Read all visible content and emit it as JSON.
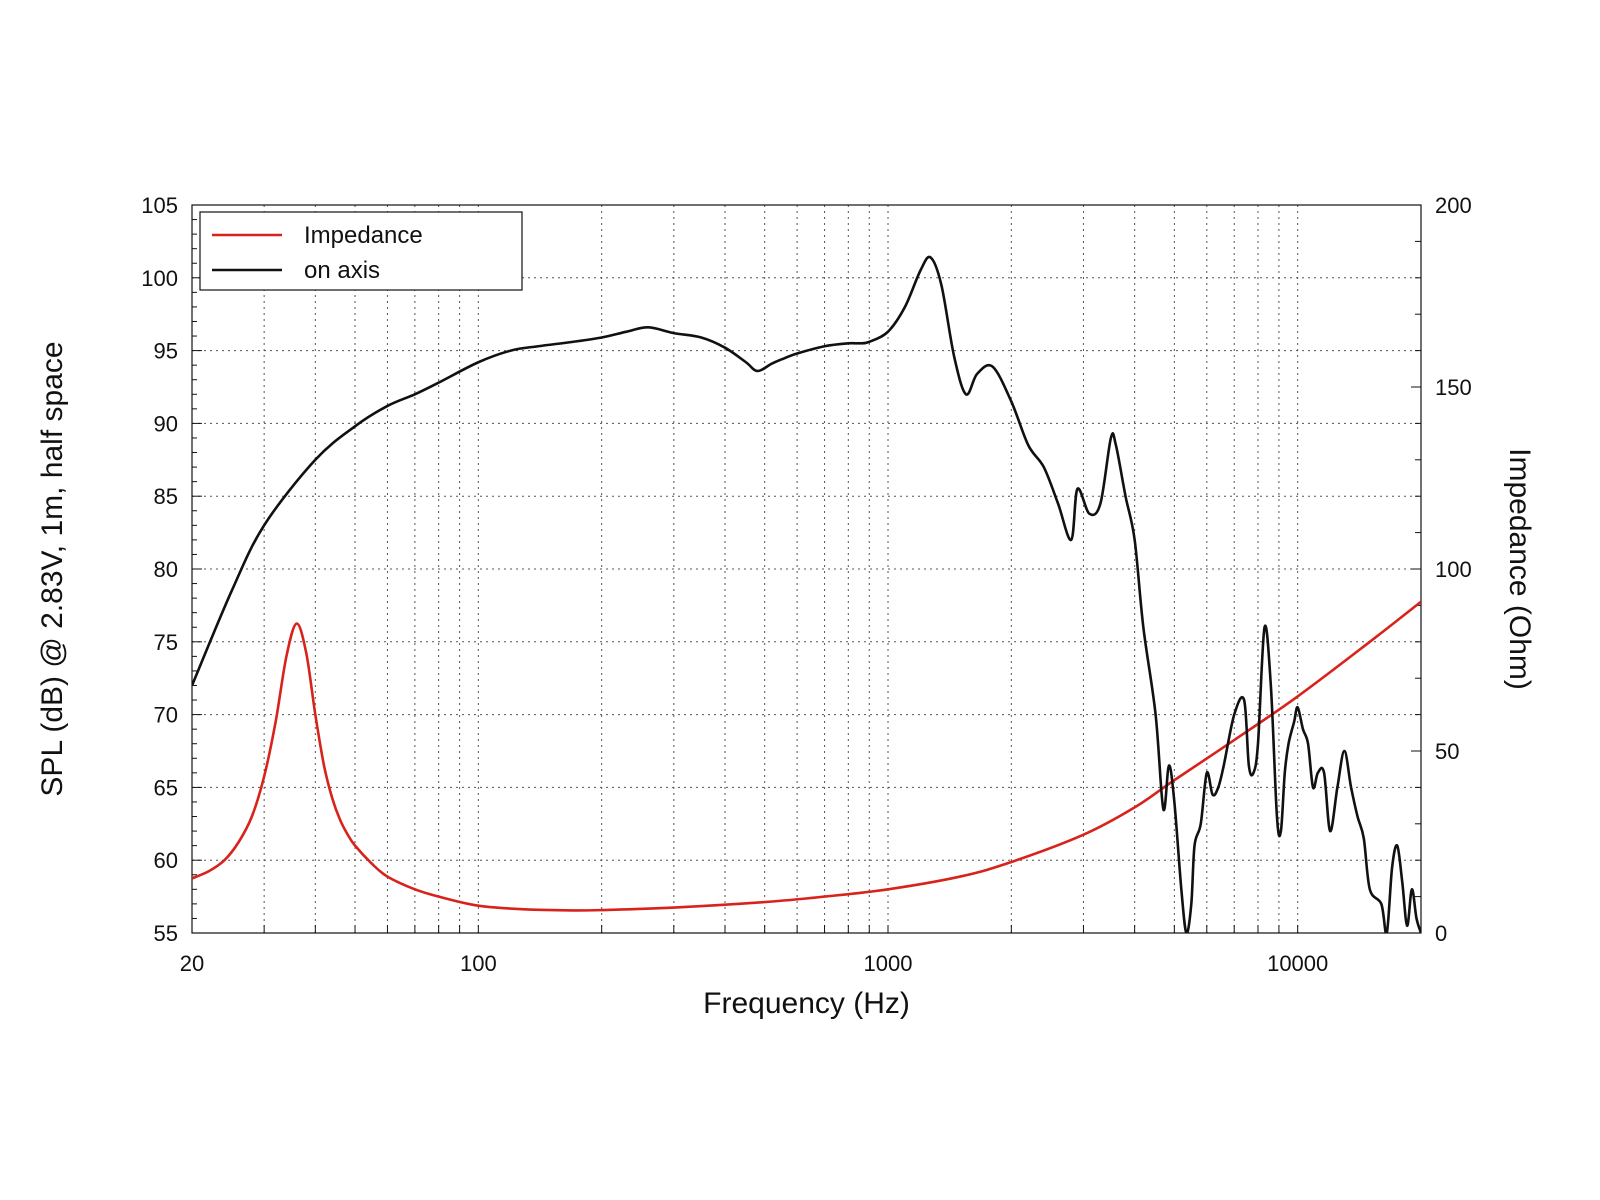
{
  "chart_data": {
    "type": "line",
    "xlabel": "Frequency (Hz)",
    "ylabel": "SPL (dB) @ 2.83V, 1m, half space",
    "y2label": "Impedance (Ohm)",
    "xscale": "log",
    "xlim": [
      20,
      20000
    ],
    "ylim": [
      55,
      105
    ],
    "y2lim": [
      0,
      200
    ],
    "xticks": [
      20,
      100,
      1000,
      10000
    ],
    "xtick_labels": [
      "20",
      "100",
      "1000",
      "10000"
    ],
    "yticks": [
      55,
      60,
      65,
      70,
      75,
      80,
      85,
      90,
      95,
      100,
      105
    ],
    "ytick_labels": [
      "55",
      "60",
      "65",
      "70",
      "75",
      "80",
      "85",
      "90",
      "95",
      "100",
      "105"
    ],
    "y2ticks": [
      0,
      50,
      100,
      150,
      200
    ],
    "y2tick_labels": [
      "0",
      "50",
      "100",
      "150",
      "200"
    ],
    "grid": true,
    "legend_position": "top-left",
    "series": [
      {
        "name": "Impedance",
        "axis": "right",
        "color": "#d8231c",
        "x": [
          20,
          22,
          24,
          26,
          28,
          30,
          32,
          34,
          36,
          38,
          40,
          42,
          44,
          46,
          48,
          50,
          55,
          60,
          70,
          80,
          100,
          130,
          170,
          200,
          300,
          500,
          700,
          1000,
          1500,
          2000,
          3000,
          4000,
          5000,
          7000,
          10000,
          15000,
          20000
        ],
        "y": [
          15,
          17,
          20,
          25,
          32,
          43,
          58,
          76,
          85,
          77,
          60,
          46,
          37,
          31,
          27,
          24,
          19,
          15.5,
          12,
          10,
          7.5,
          6.5,
          6.2,
          6.3,
          7,
          8.5,
          10,
          12,
          15.5,
          19.5,
          27,
          34.5,
          42,
          53,
          65,
          80,
          91
        ]
      },
      {
        "name": "on axis",
        "axis": "left",
        "color": "#111111",
        "x": [
          20,
          25,
          30,
          40,
          50,
          60,
          70,
          80,
          100,
          120,
          140,
          170,
          200,
          230,
          260,
          300,
          350,
          400,
          450,
          480,
          520,
          550,
          600,
          700,
          800,
          850,
          900,
          1000,
          1100,
          1200,
          1270,
          1350,
          1450,
          1550,
          1650,
          1800,
          2000,
          2200,
          2400,
          2600,
          2800,
          2900,
          3100,
          3300,
          3500,
          3600,
          3800,
          4000,
          4200,
          4500,
          4700,
          4850,
          5000,
          5200,
          5350,
          5500,
          5600,
          5800,
          6000,
          6200,
          6400,
          6600,
          7000,
          7400,
          7600,
          7800,
          8000,
          8300,
          8600,
          8900,
          9100,
          9300,
          9500,
          9800,
          10000,
          10300,
          10600,
          10900,
          11200,
          11600,
          12000,
          12500,
          13000,
          13500,
          14000,
          14500,
          15000,
          16000,
          16500,
          17000,
          17500,
          18000,
          18500,
          19000,
          19500,
          20000
        ],
        "y": [
          72,
          78.5,
          83,
          87.5,
          89.8,
          91.2,
          92,
          92.8,
          94.2,
          95,
          95.3,
          95.6,
          95.9,
          96.3,
          96.6,
          96.2,
          95.9,
          95.2,
          94.2,
          93.6,
          94.1,
          94.4,
          94.8,
          95.3,
          95.5,
          95.5,
          95.6,
          96.3,
          98,
          100.5,
          101.4,
          99.5,
          94.6,
          92,
          93.4,
          93.9,
          91.5,
          88.5,
          87,
          84.5,
          82,
          85.5,
          83.8,
          84.5,
          89,
          88.5,
          85,
          82,
          76,
          70,
          63.5,
          66.5,
          64,
          58,
          55,
          57,
          61,
          62.5,
          66,
          64.5,
          65,
          66.5,
          70,
          71,
          66.5,
          66,
          68,
          76,
          72,
          63,
          62,
          66,
          68,
          69.5,
          70.5,
          69,
          68,
          65,
          66,
          66,
          62,
          65,
          67.5,
          65,
          63,
          61.5,
          58,
          57,
          55,
          59.5,
          61,
          58.5,
          55.5,
          58,
          56,
          55
        ]
      }
    ]
  }
}
